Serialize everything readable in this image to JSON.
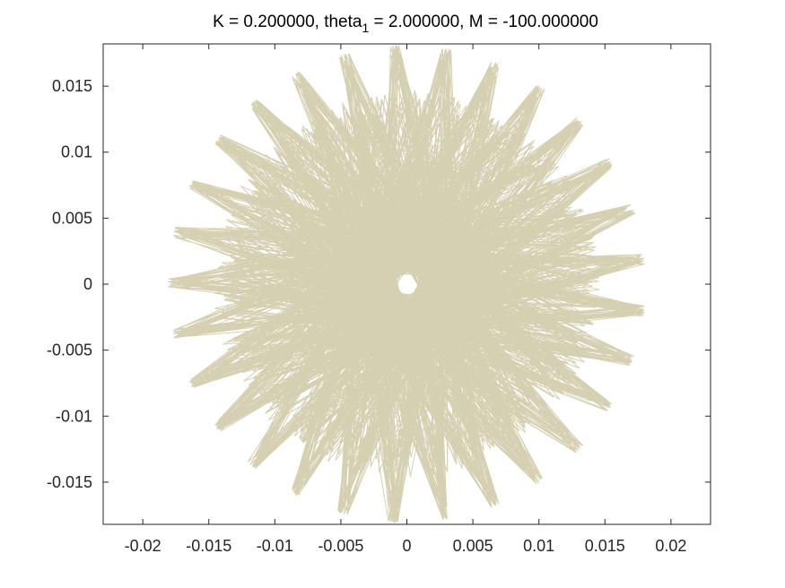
{
  "chart_data": {
    "type": "line",
    "title": {
      "prefix": "K = 0.200000, theta",
      "subscript": "1",
      "suffix": " = 2.000000,  M = -100.000000"
    },
    "xlabel": "",
    "ylabel": "",
    "xlim": [
      -0.023,
      0.023
    ],
    "ylim": [
      -0.0182,
      0.0182
    ],
    "x_ticks": [
      -0.02,
      -0.015,
      -0.01,
      -0.005,
      0,
      0.005,
      0.01,
      0.015,
      0.02
    ],
    "x_tick_labels": [
      "-0.02",
      "-0.015",
      "-0.01",
      "-0.005",
      "0",
      "0.005",
      "0.01",
      "0.015",
      "0.02"
    ],
    "y_ticks": [
      0.015,
      0.01,
      0.005,
      0,
      -0.005,
      -0.01,
      -0.015
    ],
    "y_tick_labels": [
      "0.015",
      "0.01",
      "0.005",
      "0",
      "-0.005",
      "-0.01",
      "-0.015"
    ],
    "grid": false,
    "line_color": "#d6d0b3",
    "trajectory": {
      "lobes": 29,
      "inner_radius": 0.0128,
      "outer_radius": 0.0181,
      "phase_deg": 6,
      "samples": 1450,
      "lobe_step": 13
    }
  }
}
